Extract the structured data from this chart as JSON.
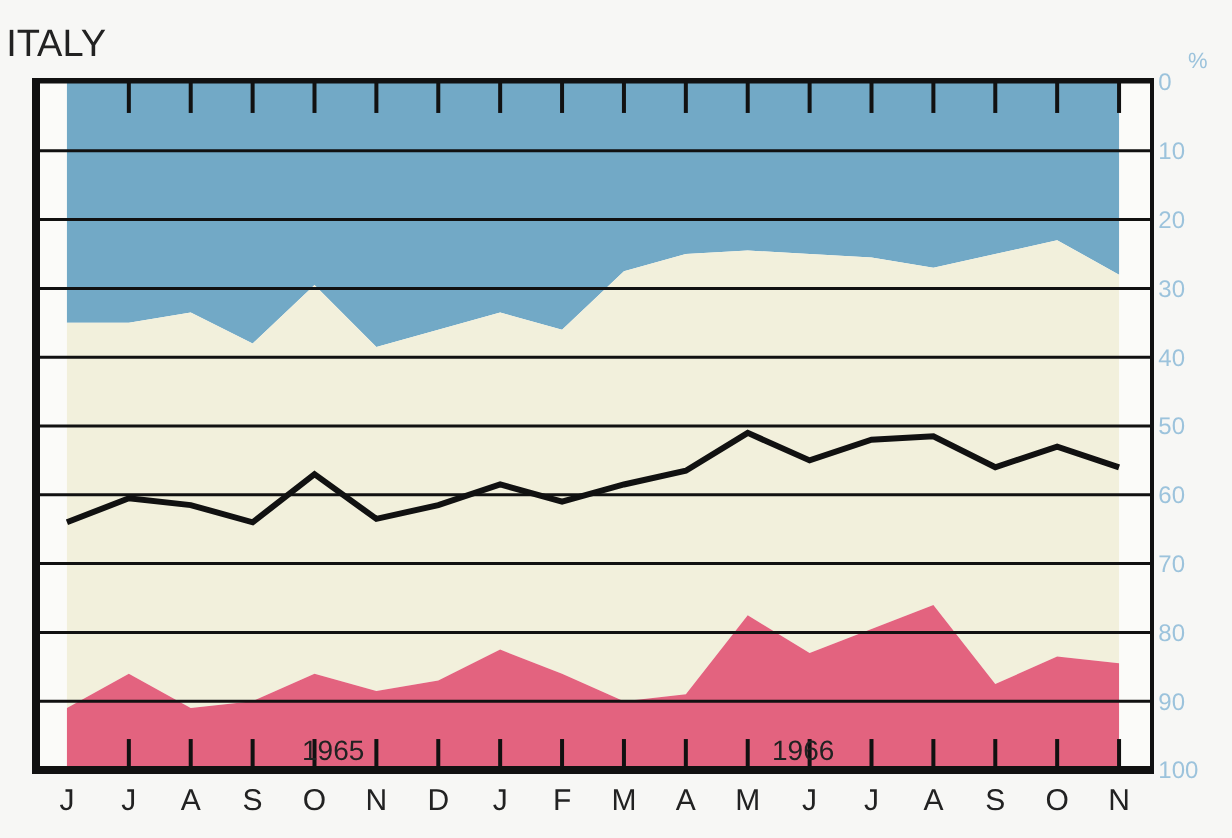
{
  "chart_data": {
    "type": "area",
    "title": "ITALY",
    "ylabel": "%",
    "stacked": true,
    "categories": [
      "J",
      "J",
      "A",
      "S",
      "O",
      "N",
      "D",
      "J",
      "F",
      "M",
      "A",
      "M",
      "J",
      "J",
      "A",
      "S",
      "O",
      "N"
    ],
    "series": [
      {
        "color": "#72a9c6",
        "values": [
          35,
          35,
          33.5,
          38,
          29.5,
          38.5,
          36,
          33.5,
          36,
          27.5,
          25,
          24.5,
          25,
          25.5,
          27,
          25,
          23,
          28
        ]
      },
      {
        "color": "#f2f0dc",
        "values": [
          56,
          51,
          57.5,
          52,
          56.5,
          50,
          51,
          49,
          50,
          62.5,
          64,
          53,
          58,
          54,
          49,
          62.5,
          60.5,
          56.5
        ]
      },
      {
        "color": "#e3637f",
        "values": [
          9,
          14,
          9,
          10,
          14,
          11.5,
          13,
          17.5,
          14,
          10,
          11,
          22.5,
          17,
          20.5,
          24,
          12.5,
          16.5,
          15.5
        ]
      },
      {
        "type": "line",
        "color": "#111111",
        "values": [
          64,
          60.5,
          61.5,
          64,
          57,
          63.5,
          61.5,
          58.5,
          61,
          58.5,
          56.5,
          51,
          55,
          52,
          51.5,
          56,
          53,
          56
        ]
      }
    ],
    "ylim": [
      100,
      0
    ],
    "yticks": [
      0,
      10,
      20,
      30,
      40,
      50,
      60,
      70,
      80,
      90,
      100
    ],
    "grid": "y",
    "legend": false,
    "marker": "none",
    "line_style": "solid",
    "annotations": [
      "1965",
      "1966"
    ]
  }
}
